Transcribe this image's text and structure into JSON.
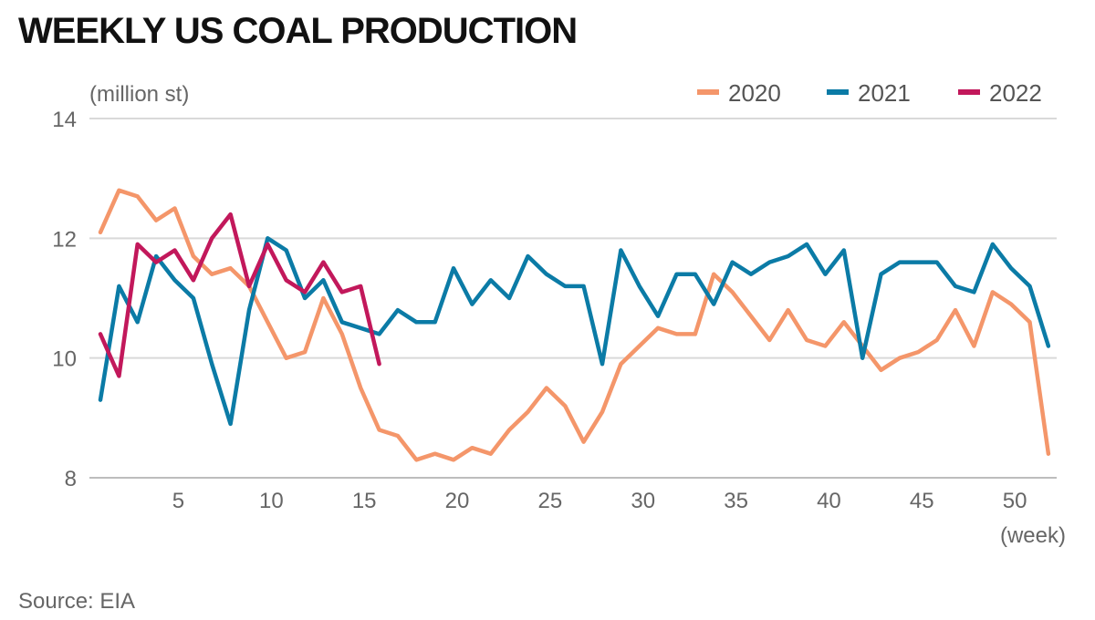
{
  "title": "WEEKLY US COAL PRODUCTION",
  "source": "Source: EIA",
  "chart_data": {
    "type": "line",
    "title": "WEEKLY US COAL PRODUCTION",
    "ylabel": "(million st)",
    "xlabel": "(week)",
    "ylim": [
      8,
      14
    ],
    "xlim": [
      1,
      52
    ],
    "yticks": [
      8,
      10,
      12,
      14
    ],
    "xticks": [
      5,
      10,
      15,
      20,
      25,
      30,
      35,
      40,
      45,
      50
    ],
    "grid": true,
    "legend_position": "top-right",
    "series": [
      {
        "name": "2020",
        "color": "#F4966A",
        "x": [
          1,
          2,
          3,
          4,
          5,
          6,
          7,
          8,
          9,
          10,
          11,
          12,
          13,
          14,
          15,
          16,
          17,
          18,
          19,
          20,
          21,
          22,
          23,
          24,
          25,
          26,
          27,
          28,
          29,
          30,
          31,
          32,
          33,
          34,
          35,
          36,
          37,
          38,
          39,
          40,
          41,
          42,
          43,
          44,
          45,
          46,
          47,
          48,
          49,
          50,
          51
        ],
        "values": [
          12.1,
          12.8,
          12.7,
          12.3,
          12.5,
          11.7,
          11.4,
          11.5,
          11.2,
          10.6,
          10.0,
          10.1,
          11.0,
          10.4,
          9.5,
          8.8,
          8.7,
          8.3,
          8.4,
          8.3,
          8.5,
          8.4,
          8.8,
          9.1,
          9.5,
          9.2,
          8.6,
          9.1,
          9.9,
          10.2,
          10.5,
          10.4,
          10.4,
          11.4,
          11.1,
          10.7,
          10.3,
          10.8,
          10.3,
          10.2,
          10.6,
          10.2,
          9.8,
          10.0,
          10.1,
          10.3,
          10.8,
          10.2,
          11.1,
          10.9,
          10.6
        ]
      },
      {
        "name": "2021",
        "color": "#0B7BA6",
        "x": [
          1,
          2,
          3,
          4,
          5,
          6,
          7,
          8,
          9,
          10,
          11,
          12,
          13,
          14,
          15,
          16,
          17,
          18,
          19,
          20,
          21,
          22,
          23,
          24,
          25,
          26,
          27,
          28,
          29,
          30,
          31,
          32,
          33,
          34,
          35,
          36,
          37,
          38,
          39,
          40,
          41,
          42,
          43,
          44,
          45,
          46,
          47,
          48,
          49,
          50,
          51,
          52
        ],
        "values": [
          9.3,
          11.2,
          10.6,
          11.7,
          11.3,
          11.0,
          9.9,
          8.9,
          10.8,
          12.0,
          11.8,
          11.0,
          11.3,
          10.6,
          10.5,
          10.4,
          10.8,
          10.6,
          10.6,
          11.5,
          10.9,
          11.3,
          11.0,
          11.7,
          11.4,
          11.2,
          11.2,
          9.9,
          11.8,
          11.2,
          10.7,
          11.4,
          11.4,
          10.9,
          11.6,
          11.4,
          11.6,
          11.7,
          11.9,
          11.4,
          11.8,
          10.0,
          11.4,
          11.6,
          11.6,
          11.6,
          11.2,
          11.1,
          11.9,
          11.5,
          11.2,
          10.2
        ]
      },
      {
        "name": "2022",
        "color": "#C2185B",
        "x": [
          1,
          2,
          3,
          4,
          5,
          6,
          7,
          8,
          9,
          10,
          11,
          12,
          13,
          14,
          15,
          16
        ],
        "values": [
          10.4,
          9.7,
          11.9,
          11.6,
          11.8,
          11.3,
          12.0,
          12.4,
          11.2,
          11.9,
          11.3,
          11.1,
          11.6,
          11.1,
          11.2,
          9.9
        ]
      }
    ],
    "final_point_2020": {
      "x": 52,
      "value": 8.4
    }
  }
}
